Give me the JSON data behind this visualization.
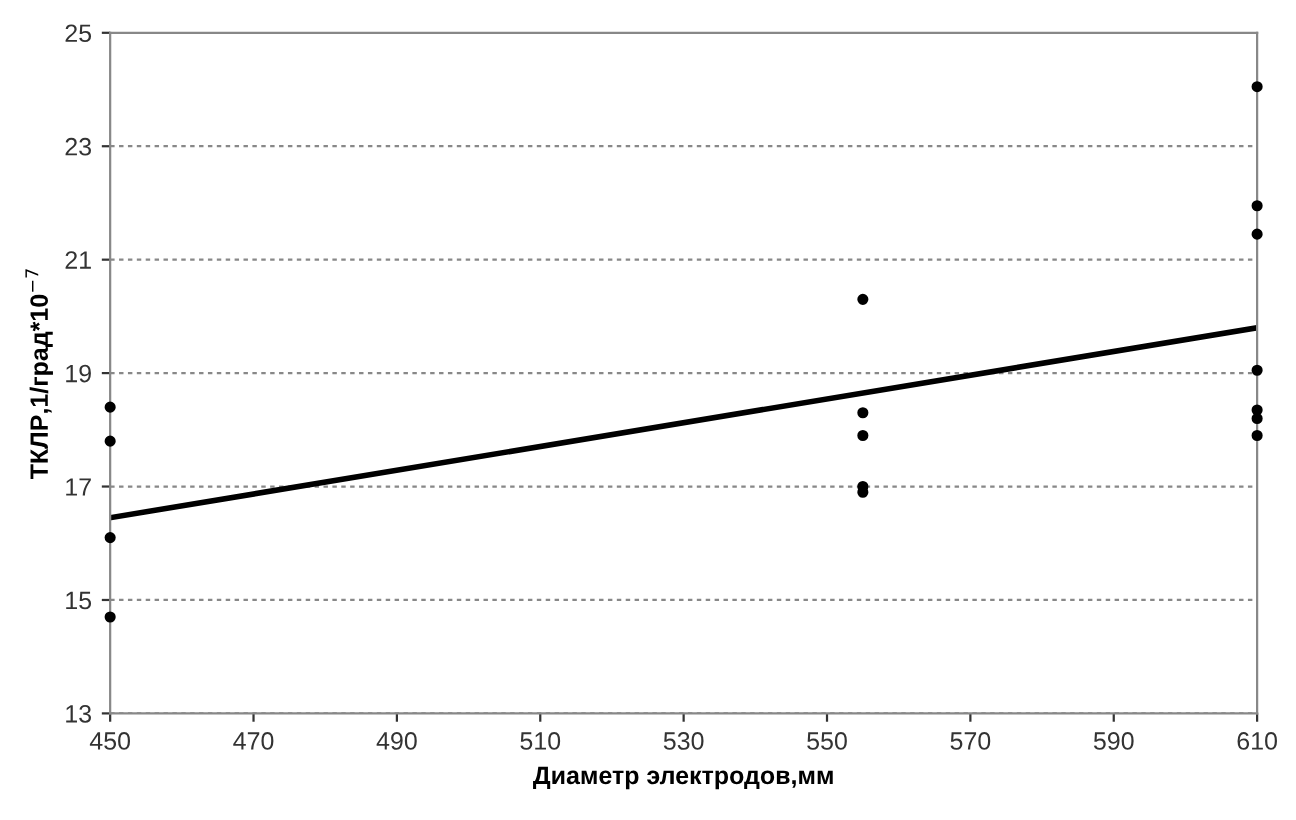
{
  "chart_data": {
    "type": "scatter",
    "xlabel": "Диаметр электродов,мм",
    "ylabel": "ТКЛР,1/град*10$^{−7}$",
    "xlim": [
      450,
      610
    ],
    "xticks": [
      450,
      470,
      490,
      510,
      530,
      550,
      570,
      590,
      610
    ],
    "ylim": [
      13,
      25
    ],
    "yticks": [
      13,
      15,
      17,
      19,
      21,
      23,
      25
    ],
    "grid": "y",
    "marker": "circle",
    "series": [
      {
        "color": "#000000",
        "x": [
          450,
          450,
          450,
          450,
          555,
          555,
          555,
          555,
          555,
          610,
          610,
          610,
          610,
          610,
          610,
          610
        ],
        "values": [
          18.4,
          17.8,
          16.1,
          14.7,
          20.3,
          18.3,
          17.9,
          17.0,
          16.9,
          24.05,
          21.95,
          21.45,
          19.05,
          18.35,
          18.2,
          17.9
        ]
      },
      {
        "type": "line",
        "color": "#000000",
        "x": [
          450,
          610
        ],
        "values": [
          16.45,
          19.8
        ],
        "marker": "none"
      }
    ]
  }
}
